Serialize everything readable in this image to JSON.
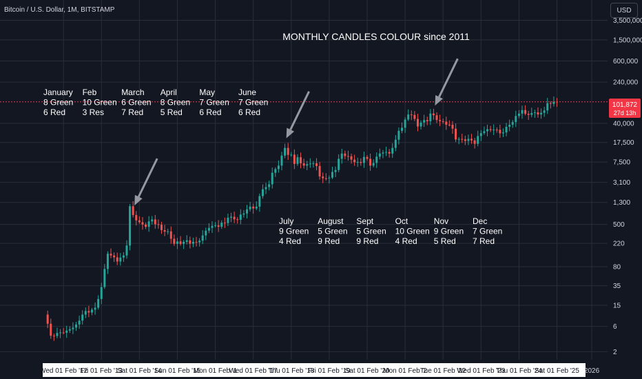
{
  "header": {
    "symbol": "Bitcoin / U.S. Dollar, 1M, BITSTAMP",
    "currency": "USD"
  },
  "price_tag": {
    "value": "101,872",
    "countdown": "27d 13h",
    "color": "#f23645"
  },
  "colors": {
    "up": "#26a69a",
    "down": "#ef5350",
    "arrow": "#9598a1",
    "grid": "#2a2e39",
    "background": "#131722"
  },
  "chart_data": {
    "type": "candlestick",
    "title": "MONTHLY CANDLES COLOUR since 2011",
    "y_scale": "log",
    "ylim": [
      1.5,
      4000000
    ],
    "xlim": [
      "2011-07",
      "2026-06"
    ],
    "y_ticks": [
      "3,500,000",
      "1,500,000",
      "600,000",
      "240,000",
      "40,000",
      "17,500",
      "7,500",
      "3,100",
      "1,300",
      "500",
      "220",
      "80",
      "35",
      "15",
      "6",
      "2"
    ],
    "x_ticks": [
      "Wed 01 Feb '12",
      "Fri 01 Feb '13",
      "Sat 01 Feb '14",
      "Sun 01 Feb '15",
      "Mon 01 Feb '1",
      "Wed 01 Feb '17",
      "Thu 01 Feb '18",
      "Fri 01 Feb '19",
      "Sat 01 Feb '20",
      "Mon 01 Feb '2",
      "Tue 01 Feb '22",
      "Wed 01 Feb '23",
      "Thu 01 Feb '24",
      "Sat 01 Feb '25",
      "2026"
    ],
    "last_price": 101872,
    "annotations_top": [
      {
        "month": "January",
        "green": "8 Green",
        "red": "6 Red"
      },
      {
        "month": "Feb",
        "green": "10 Green",
        "red": "3 Res"
      },
      {
        "month": "March",
        "green": "6 Green",
        "red": "7 Red"
      },
      {
        "month": "April",
        "green": "8 Green",
        "red": "5 Red"
      },
      {
        "month": "May",
        "green": "7 Green",
        "red": "6 Red"
      },
      {
        "month": "June",
        "green": "7 Green",
        "red": "6 Red"
      }
    ],
    "annotations_bottom": [
      {
        "month": "July",
        "green": "9 Green",
        "red": "4 Red"
      },
      {
        "month": "August",
        "green": "5 Green",
        "red": "9 Red"
      },
      {
        "month": "Sept",
        "green": "5 Green",
        "red": "9 Red"
      },
      {
        "month": "Oct",
        "green": "10 Green",
        "red": "4 Red"
      },
      {
        "month": "Nov",
        "green": "9 Green",
        "red": "5 Red"
      },
      {
        "month": "Dec",
        "green": "7 Green",
        "red": "7 Red"
      }
    ],
    "arrows": [
      "2013-12",
      "2017-12",
      "2021-11"
    ],
    "anchors": [
      [
        "2011-08",
        10
      ],
      [
        "2011-10",
        4
      ],
      [
        "2011-12",
        4.5
      ],
      [
        "2012-03",
        5
      ],
      [
        "2012-06",
        6.5
      ],
      [
        "2012-08",
        10
      ],
      [
        "2012-12",
        13.5
      ],
      [
        "2013-02",
        33
      ],
      [
        "2013-04",
        140
      ],
      [
        "2013-05",
        130
      ],
      [
        "2013-07",
        100
      ],
      [
        "2013-09",
        130
      ],
      [
        "2013-10",
        200
      ],
      [
        "2013-11",
        1100
      ],
      [
        "2013-12",
        750
      ],
      [
        "2014-02",
        550
      ],
      [
        "2014-04",
        450
      ],
      [
        "2014-06",
        620
      ],
      [
        "2014-09",
        390
      ],
      [
        "2014-11",
        370
      ],
      [
        "2015-01",
        215
      ],
      [
        "2015-04",
        235
      ],
      [
        "2015-08",
        230
      ],
      [
        "2015-10",
        310
      ],
      [
        "2015-12",
        430
      ],
      [
        "2016-05",
        530
      ],
      [
        "2016-06",
        670
      ],
      [
        "2016-09",
        610
      ],
      [
        "2016-12",
        960
      ],
      [
        "2017-03",
        1080
      ],
      [
        "2017-05",
        2300
      ],
      [
        "2017-07",
        2850
      ],
      [
        "2017-08",
        4700
      ],
      [
        "2017-10",
        6400
      ],
      [
        "2017-11",
        9900
      ],
      [
        "2017-12",
        13800
      ],
      [
        "2018-01",
        10200
      ],
      [
        "2018-02",
        10300
      ],
      [
        "2018-03",
        6900
      ],
      [
        "2018-04",
        9200
      ],
      [
        "2018-06",
        6400
      ],
      [
        "2018-08",
        7000
      ],
      [
        "2018-10",
        6300
      ],
      [
        "2018-11",
        4000
      ],
      [
        "2018-12",
        3700
      ],
      [
        "2019-02",
        3800
      ],
      [
        "2019-04",
        5300
      ],
      [
        "2019-05",
        8600
      ],
      [
        "2019-06",
        10800
      ],
      [
        "2019-08",
        9600
      ],
      [
        "2019-09",
        8300
      ],
      [
        "2019-11",
        7500
      ],
      [
        "2019-12",
        7200
      ],
      [
        "2020-01",
        9350
      ],
      [
        "2020-02",
        8600
      ],
      [
        "2020-03",
        6400
      ],
      [
        "2020-05",
        9450
      ],
      [
        "2020-07",
        11300
      ],
      [
        "2020-09",
        10800
      ],
      [
        "2020-10",
        13800
      ],
      [
        "2020-11",
        19700
      ],
      [
        "2020-12",
        29000
      ],
      [
        "2021-01",
        33100
      ],
      [
        "2021-03",
        58800
      ],
      [
        "2021-04",
        57700
      ],
      [
        "2021-06",
        35000
      ],
      [
        "2021-07",
        41500
      ],
      [
        "2021-09",
        43800
      ],
      [
        "2021-10",
        61300
      ],
      [
        "2021-11",
        57000
      ],
      [
        "2021-12",
        46300
      ],
      [
        "2022-02",
        43200
      ],
      [
        "2022-04",
        37700
      ],
      [
        "2022-05",
        31800
      ],
      [
        "2022-06",
        19900
      ],
      [
        "2022-08",
        20000
      ],
      [
        "2022-10",
        20500
      ],
      [
        "2022-12",
        16500
      ],
      [
        "2023-01",
        23100
      ],
      [
        "2023-03",
        28500
      ],
      [
        "2023-06",
        30500
      ],
      [
        "2023-08",
        26000
      ],
      [
        "2023-09",
        27000
      ],
      [
        "2023-10",
        34500
      ],
      [
        "2023-11",
        37700
      ],
      [
        "2023-12",
        42300
      ],
      [
        "2024-02",
        61200
      ],
      [
        "2024-03",
        71300
      ],
      [
        "2024-04",
        60700
      ],
      [
        "2024-06",
        62700
      ],
      [
        "2024-07",
        64600
      ],
      [
        "2024-08",
        58900
      ],
      [
        "2024-09",
        63300
      ],
      [
        "2024-10",
        70200
      ],
      [
        "2024-11",
        96400
      ],
      [
        "2024-12",
        93400
      ],
      [
        "2025-01",
        102400
      ],
      [
        "2025-02",
        101872
      ]
    ]
  }
}
